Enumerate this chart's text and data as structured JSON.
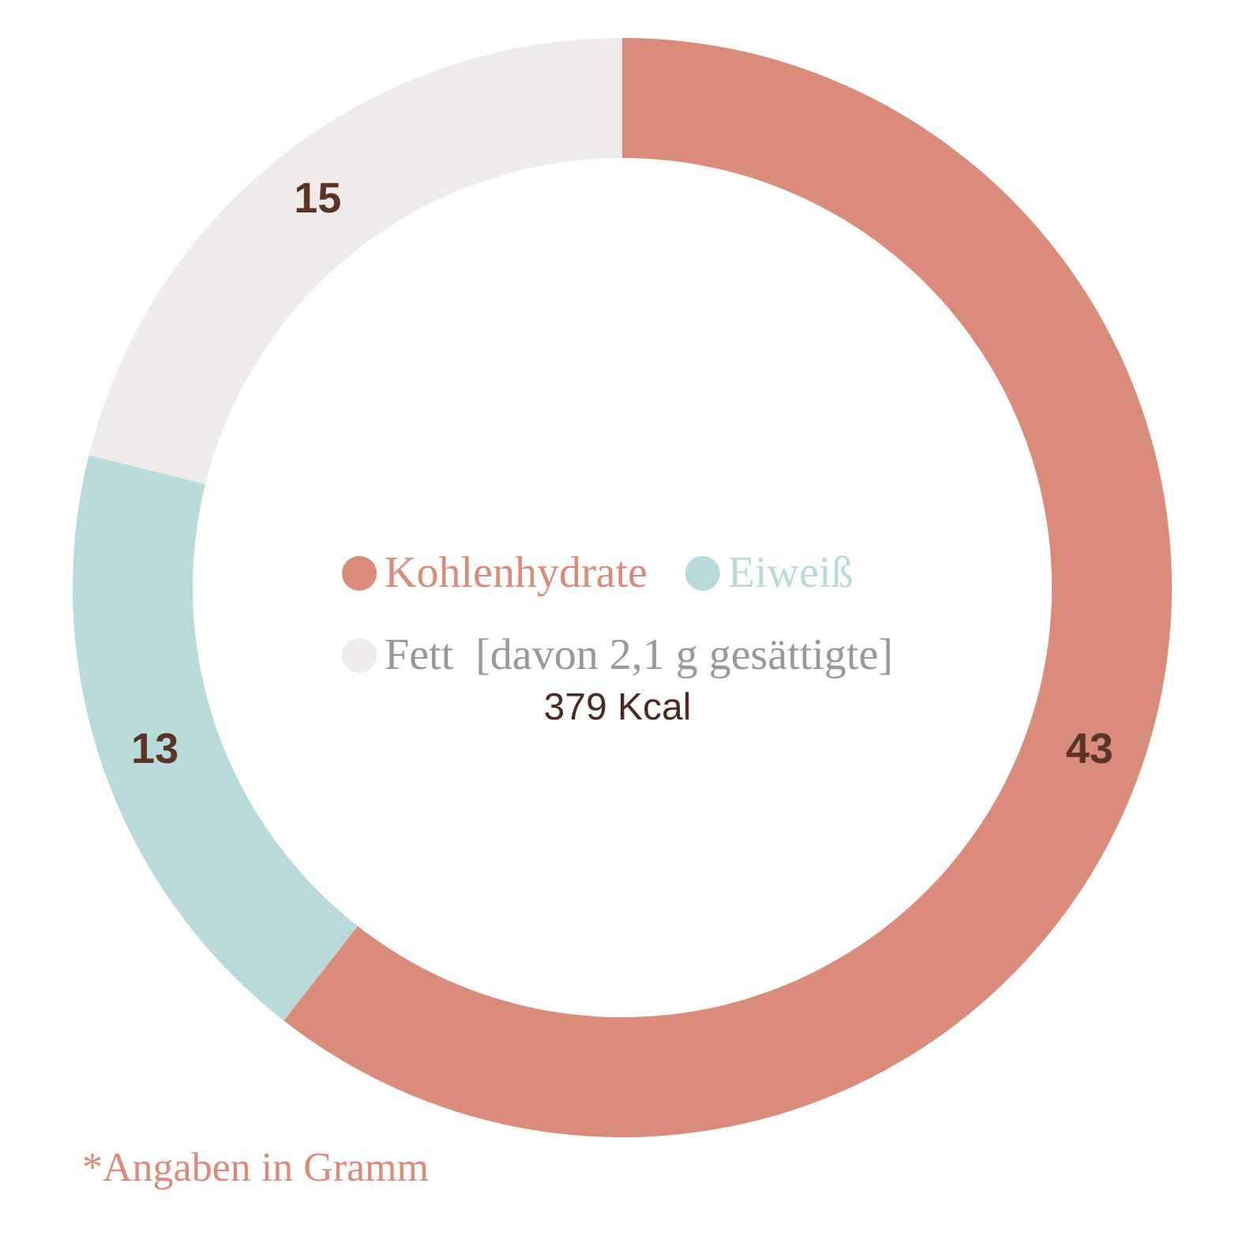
{
  "chart_data": {
    "type": "donut",
    "categories": [
      "Kohlenhydrate",
      "Eiweiß",
      "Fett  [davon 2,1 g gesättigte]"
    ],
    "values": [
      43,
      13,
      15
    ],
    "colors": [
      "#db8b7a",
      "#b9dadb",
      "#efebea"
    ],
    "data_labels": true,
    "legend": "center",
    "annotations": [
      "379 Kcal",
      "*Angaben in Gramm"
    ]
  }
}
